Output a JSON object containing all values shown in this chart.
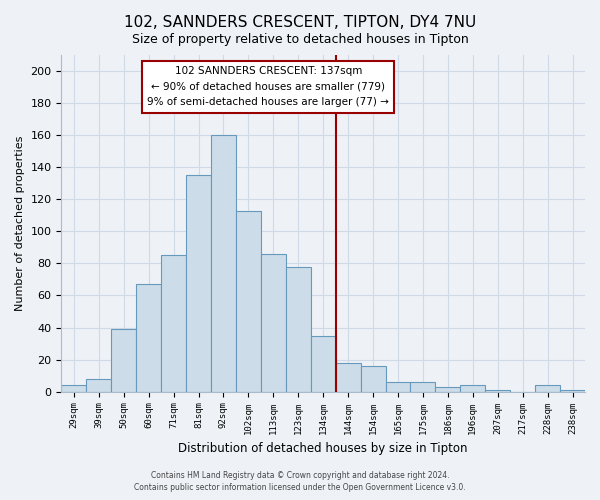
{
  "title": "102, SANNDERS CRESCENT, TIPTON, DY4 7NU",
  "subtitle": "Size of property relative to detached houses in Tipton",
  "xlabel": "Distribution of detached houses by size in Tipton",
  "ylabel": "Number of detached properties",
  "bar_labels": [
    "29sqm",
    "39sqm",
    "50sqm",
    "60sqm",
    "71sqm",
    "81sqm",
    "92sqm",
    "102sqm",
    "113sqm",
    "123sqm",
    "134sqm",
    "144sqm",
    "154sqm",
    "165sqm",
    "175sqm",
    "186sqm",
    "196sqm",
    "207sqm",
    "217sqm",
    "228sqm",
    "238sqm"
  ],
  "bar_values": [
    4,
    8,
    39,
    67,
    85,
    135,
    160,
    113,
    86,
    78,
    35,
    18,
    16,
    6,
    6,
    3,
    4,
    1,
    0,
    4,
    1
  ],
  "bar_color": "#ccdce8",
  "bar_edge_color": "#6699bb",
  "vline_x": 10.5,
  "vline_color": "#990000",
  "ylim": [
    0,
    210
  ],
  "yticks": [
    0,
    20,
    40,
    60,
    80,
    100,
    120,
    140,
    160,
    180,
    200
  ],
  "annotation_title": "102 SANNDERS CRESCENT: 137sqm",
  "annotation_line1": "← 90% of detached houses are smaller (779)",
  "annotation_line2": "9% of semi-detached houses are larger (77) →",
  "footer1": "Contains HM Land Registry data © Crown copyright and database right 2024.",
  "footer2": "Contains public sector information licensed under the Open Government Licence v3.0.",
  "bg_color": "#eef2f7",
  "plot_bg_color": "#eef2f7",
  "grid_color": "#d0dae6"
}
